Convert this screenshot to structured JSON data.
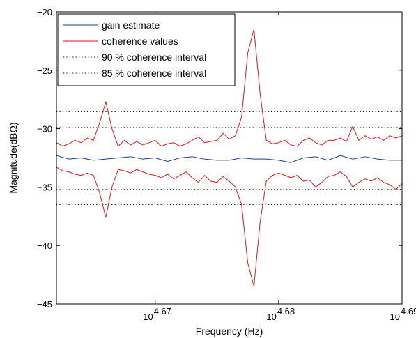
{
  "chart_data": {
    "type": "line",
    "title": "",
    "xlabel": "Frequency (Hz)",
    "ylabel": "Magnitude(dBΩ)",
    "x_scale": "log",
    "xlim_log10": [
      4.662,
      4.69
    ],
    "ylim": [
      -45,
      -20
    ],
    "xticks": [
      {
        "log10": 4.67,
        "base": "10",
        "exp": "4.67"
      },
      {
        "log10": 4.68,
        "base": "10",
        "exp": "4.68"
      },
      {
        "log10": 4.69,
        "base": "10",
        "exp": "4.69"
      }
    ],
    "yticks": [
      {
        "value": -45,
        "label": "−45"
      },
      {
        "value": -40,
        "label": "−40"
      },
      {
        "value": -35,
        "label": "−35"
      },
      {
        "value": -30,
        "label": "−30"
      },
      {
        "value": -25,
        "label": "−25"
      },
      {
        "value": -20,
        "label": "−20"
      }
    ],
    "grid": false,
    "legend_position": "top-left",
    "colors": {
      "gain": "#1f3f8f",
      "coherence": "#e0141e",
      "interval": "#000000"
    },
    "series": [
      {
        "name": "gain estimate",
        "style": "solid",
        "color": "#1f3f8f",
        "x_log10": [
          4.662,
          4.663,
          4.664,
          4.665,
          4.666,
          4.667,
          4.668,
          4.669,
          4.67,
          4.671,
          4.672,
          4.673,
          4.674,
          4.675,
          4.676,
          4.677,
          4.678,
          4.679,
          4.68,
          4.681,
          4.682,
          4.683,
          4.684,
          4.685,
          4.686,
          4.687,
          4.688,
          4.689,
          4.69
        ],
        "y": [
          -32.3,
          -32.6,
          -32.5,
          -32.7,
          -32.6,
          -32.5,
          -32.4,
          -32.6,
          -32.5,
          -32.8,
          -32.5,
          -32.4,
          -32.6,
          -32.7,
          -32.7,
          -32.5,
          -32.6,
          -32.6,
          -32.7,
          -32.9,
          -32.5,
          -32.4,
          -32.7,
          -32.3,
          -32.6,
          -32.4,
          -32.6,
          -32.7,
          -32.7
        ]
      },
      {
        "name": "coherence values",
        "style": "solid",
        "color": "#e0141e",
        "x_log10": [
          4.662,
          4.6625,
          4.663,
          4.6635,
          4.664,
          4.6645,
          4.665,
          4.6655,
          4.666,
          4.6665,
          4.667,
          4.6675,
          4.668,
          4.6685,
          4.669,
          4.6695,
          4.67,
          4.6705,
          4.671,
          4.6715,
          4.672,
          4.6725,
          4.673,
          4.6735,
          4.674,
          4.6745,
          4.675,
          4.6755,
          4.676,
          4.6765,
          4.677,
          4.6775,
          4.678,
          4.6785,
          4.679,
          4.6795,
          4.68,
          4.6805,
          4.681,
          4.6815,
          4.682,
          4.6825,
          4.683,
          4.6835,
          4.684,
          4.6845,
          4.685,
          4.6855,
          4.686,
          4.6865,
          4.687,
          4.6875,
          4.688,
          4.6885,
          4.689,
          4.6895,
          4.69
        ],
        "y": [
          -31.2,
          -31.5,
          -31.3,
          -31.0,
          -31.2,
          -30.8,
          -31.0,
          -29.5,
          -27.7,
          -30.0,
          -31.5,
          -31.0,
          -31.4,
          -31.1,
          -31.4,
          -31.2,
          -31.0,
          -31.5,
          -31.3,
          -31.2,
          -31.5,
          -31.3,
          -31.0,
          -30.7,
          -31.2,
          -31.1,
          -31.0,
          -30.4,
          -30.9,
          -30.6,
          -29.0,
          -23.5,
          -21.5,
          -27.0,
          -31.0,
          -31.3,
          -31.2,
          -31.0,
          -31.4,
          -31.5,
          -31.0,
          -30.8,
          -31.2,
          -31.4,
          -31.0,
          -31.0,
          -30.8,
          -31.1,
          -29.8,
          -31.0,
          -30.6,
          -30.9,
          -30.7,
          -31.0,
          -30.6,
          -30.8,
          -30.6
        ]
      },
      {
        "name": "coherence values (lower)",
        "style": "solid",
        "color": "#e0141e",
        "x_log10": [
          4.662,
          4.6625,
          4.663,
          4.6635,
          4.664,
          4.6645,
          4.665,
          4.6655,
          4.666,
          4.6665,
          4.667,
          4.6675,
          4.668,
          4.6685,
          4.669,
          4.6695,
          4.67,
          4.6705,
          4.671,
          4.6715,
          4.672,
          4.6725,
          4.673,
          4.6735,
          4.674,
          4.6745,
          4.675,
          4.6755,
          4.676,
          4.6765,
          4.677,
          4.6775,
          4.678,
          4.6785,
          4.679,
          4.6795,
          4.68,
          4.6805,
          4.681,
          4.6815,
          4.682,
          4.6825,
          4.683,
          4.6835,
          4.684,
          4.6845,
          4.685,
          4.6855,
          4.686,
          4.6865,
          4.687,
          4.6875,
          4.688,
          4.6885,
          4.689,
          4.6895,
          4.69
        ],
        "y": [
          -33.3,
          -33.6,
          -33.7,
          -33.9,
          -34.0,
          -33.8,
          -34.0,
          -35.5,
          -37.6,
          -35.0,
          -33.5,
          -33.6,
          -33.8,
          -33.5,
          -33.7,
          -33.9,
          -34.0,
          -34.2,
          -33.9,
          -34.3,
          -34.0,
          -33.7,
          -34.2,
          -34.6,
          -34.0,
          -34.5,
          -34.6,
          -34.1,
          -34.5,
          -35.0,
          -36.5,
          -41.5,
          -43.5,
          -38.0,
          -34.5,
          -34.0,
          -33.8,
          -34.0,
          -34.2,
          -34.0,
          -34.5,
          -34.4,
          -35.0,
          -34.6,
          -34.1,
          -34.0,
          -33.7,
          -34.1,
          -35.0,
          -34.6,
          -34.3,
          -34.5,
          -34.2,
          -34.6,
          -34.8,
          -35.2,
          -34.7
        ]
      }
    ],
    "intervals": [
      {
        "name": "90 % coherence interval",
        "style": "dotted",
        "color": "#000000",
        "values": [
          -29.9,
          -35.2
        ]
      },
      {
        "name": "85 % coherence interval",
        "style": "dotted",
        "color": "#000000",
        "values": [
          -28.5,
          -36.5
        ]
      }
    ],
    "legend": [
      {
        "label": "gain estimate",
        "style": "solid",
        "color": "#1f3f8f"
      },
      {
        "label": "coherence values",
        "style": "solid",
        "color": "#e0141e"
      },
      {
        "label": "90 % coherence interval",
        "style": "dotted",
        "color": "#000000"
      },
      {
        "label": "85 % coherence interval",
        "style": "dotted",
        "color": "#000000"
      }
    ]
  }
}
